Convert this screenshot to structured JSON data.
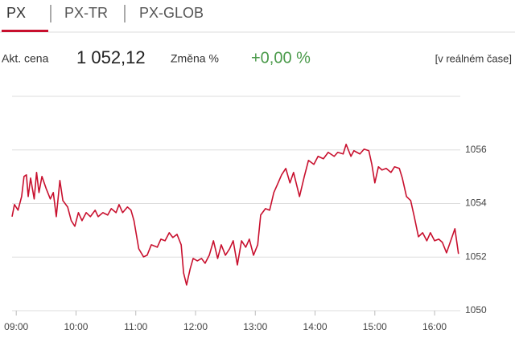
{
  "tabs": [
    "PX",
    "PX-TR",
    "PX-GLOB"
  ],
  "info": {
    "price_label": "Akt. cena",
    "price": "1 052,12",
    "change_label": "Změna %",
    "change": "+0,00 %",
    "note": "[v reálném čase]"
  },
  "chart_data": {
    "type": "line",
    "color": "#c8102e",
    "grid": true,
    "xlim": [
      8.93,
      16.43
    ],
    "ylim": [
      1050,
      1058
    ],
    "xticks": [
      {
        "value": 9,
        "label": "09:00"
      },
      {
        "value": 10,
        "label": "10:00"
      },
      {
        "value": 11,
        "label": "11:00"
      },
      {
        "value": 12,
        "label": "12:00"
      },
      {
        "value": 13,
        "label": "13:00"
      },
      {
        "value": 14,
        "label": "14:00"
      },
      {
        "value": 15,
        "label": "15:00"
      },
      {
        "value": 16,
        "label": "16:00"
      }
    ],
    "yticks": [
      1050,
      1052,
      1054,
      1056
    ],
    "x": [
      8.93,
      8.97,
      9.03,
      9.09,
      9.13,
      9.17,
      9.2,
      9.24,
      9.3,
      9.34,
      9.38,
      9.43,
      9.5,
      9.57,
      9.62,
      9.67,
      9.73,
      9.78,
      9.86,
      9.92,
      9.98,
      10.04,
      10.1,
      10.17,
      10.24,
      10.32,
      10.37,
      10.45,
      10.53,
      10.59,
      10.67,
      10.72,
      10.78,
      10.86,
      10.92,
      10.97,
      11.05,
      11.13,
      11.19,
      11.26,
      11.36,
      11.42,
      11.49,
      11.56,
      11.62,
      11.69,
      11.76,
      11.8,
      11.85,
      11.91,
      11.96,
      12.03,
      12.1,
      12.16,
      12.23,
      12.3,
      12.37,
      12.43,
      12.5,
      12.57,
      12.63,
      12.7,
      12.77,
      12.84,
      12.9,
      12.97,
      13.04,
      13.09,
      13.17,
      13.24,
      13.31,
      13.37,
      13.44,
      13.51,
      13.58,
      13.64,
      13.74,
      13.82,
      13.89,
      13.98,
      14.05,
      14.14,
      14.22,
      14.32,
      14.38,
      14.47,
      14.52,
      14.6,
      14.65,
      14.75,
      14.82,
      14.9,
      14.95,
      15,
      15.06,
      15.12,
      15.19,
      15.27,
      15.33,
      15.41,
      15.46,
      15.53,
      15.6,
      15.66,
      15.73,
      15.8,
      15.87,
      15.93,
      16,
      16.07,
      16.13,
      16.2,
      16.27,
      16.34,
      16.4
    ],
    "values": [
      1053.51,
      1053.96,
      1053.75,
      1054.26,
      1055.01,
      1055.07,
      1054.26,
      1054.95,
      1054.17,
      1055.16,
      1054.41,
      1055.01,
      1054.56,
      1054.17,
      1054.41,
      1053.51,
      1054.86,
      1054.11,
      1053.87,
      1053.36,
      1053.15,
      1053.66,
      1053.36,
      1053.66,
      1053.51,
      1053.75,
      1053.51,
      1053.66,
      1053.57,
      1053.81,
      1053.66,
      1053.96,
      1053.66,
      1053.87,
      1053.75,
      1053.36,
      1052.31,
      1052.01,
      1052.07,
      1052.46,
      1052.37,
      1052.67,
      1052.61,
      1052.91,
      1052.73,
      1052.85,
      1052.46,
      1051.41,
      1050.96,
      1051.56,
      1051.95,
      1051.86,
      1051.95,
      1051.77,
      1052.07,
      1052.61,
      1051.95,
      1052.46,
      1052.07,
      1052.31,
      1052.61,
      1051.71,
      1052.61,
      1052.37,
      1052.67,
      1052.07,
      1052.46,
      1053.57,
      1053.81,
      1053.75,
      1054.41,
      1054.71,
      1055.07,
      1055.31,
      1054.77,
      1055.16,
      1054.26,
      1055.01,
      1055.61,
      1055.46,
      1055.76,
      1055.67,
      1055.91,
      1055.76,
      1055.91,
      1055.85,
      1056.21,
      1055.76,
      1055.97,
      1055.85,
      1056.03,
      1055.97,
      1055.46,
      1054.77,
      1055.37,
      1055.25,
      1055.31,
      1055.16,
      1055.37,
      1055.31,
      1054.95,
      1054.26,
      1054.11,
      1053.51,
      1052.76,
      1052.91,
      1052.61,
      1052.91,
      1052.61,
      1052.67,
      1052.55,
      1052.16,
      1052.61,
      1053.06,
      1052.12
    ]
  }
}
